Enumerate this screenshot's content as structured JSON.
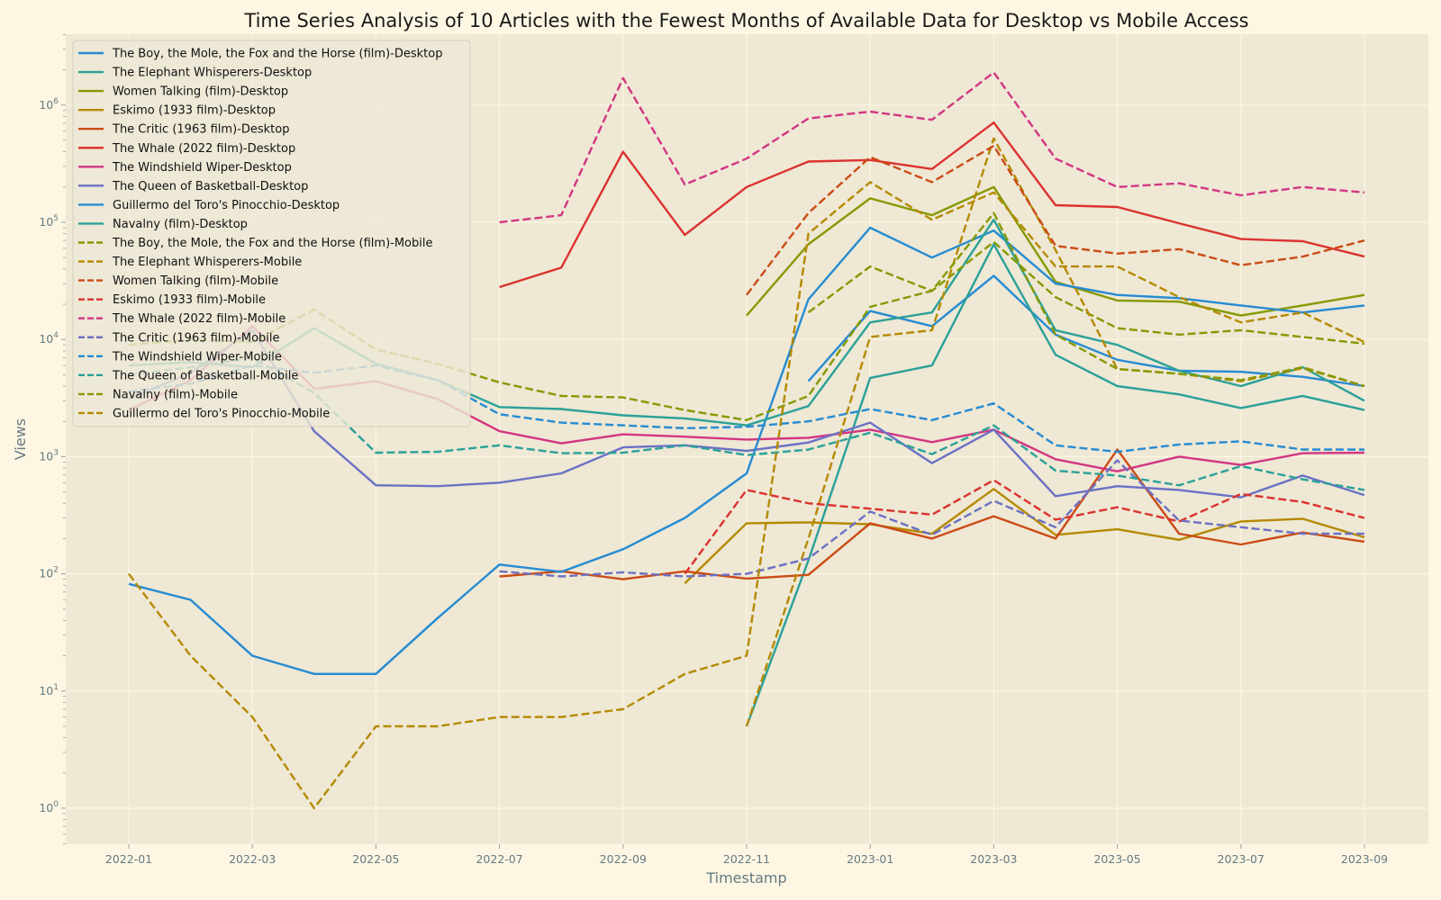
{
  "chart_data": {
    "type": "line",
    "title": "Time Series Analysis of 10 Articles with the Fewest Months of Available Data for Desktop vs Mobile Access",
    "xlabel": "Timestamp",
    "ylabel": "Views",
    "yscale": "log",
    "ylim": [
      0.5,
      4000000
    ],
    "xlim": [
      "2021-12-01",
      "2023-09-01"
    ],
    "grid": true,
    "legend_position": "top-left",
    "x_ticks": [
      "2022-01",
      "2022-03",
      "2022-05",
      "2022-07",
      "2022-09",
      "2022-11",
      "2023-01",
      "2023-03",
      "2023-05",
      "2023-07",
      "2023-09"
    ],
    "y_ticks": [
      1,
      10,
      100,
      1000,
      10000,
      100000,
      1000000
    ],
    "x": [
      "2022-01",
      "2022-02",
      "2022-03",
      "2022-04",
      "2022-05",
      "2022-06",
      "2022-07",
      "2022-08",
      "2022-09",
      "2022-10",
      "2022-11",
      "2022-12",
      "2023-01",
      "2023-02",
      "2023-03",
      "2023-04",
      "2023-05",
      "2023-06",
      "2023-07",
      "2023-08",
      "2023-09"
    ],
    "series": [
      {
        "name": "The Boy, the Mole, the Fox and the Horse (film)-Desktop",
        "color": "#268bd2",
        "dash": "solid",
        "values": [
          null,
          null,
          null,
          null,
          null,
          null,
          null,
          null,
          null,
          null,
          null,
          4400,
          17500,
          13000,
          35000,
          11000,
          6700,
          5400,
          5300,
          4800,
          4000
        ]
      },
      {
        "name": "The Elephant Whisperers-Desktop",
        "color": "#2aa198",
        "dash": "solid",
        "values": [
          null,
          null,
          null,
          null,
          null,
          null,
          null,
          null,
          null,
          null,
          5,
          130,
          4700,
          6000,
          65000,
          7400,
          4000,
          3400,
          2600,
          3300,
          2500
        ]
      },
      {
        "name": "Women Talking (film)-Desktop",
        "color": "#859900",
        "dash": "solid",
        "values": [
          null,
          null,
          null,
          null,
          null,
          null,
          null,
          null,
          null,
          null,
          16000,
          65000,
          160000,
          115000,
          200000,
          31000,
          21500,
          21000,
          16000,
          19500,
          24000
        ]
      },
      {
        "name": "Eskimo (1933 film)-Desktop",
        "color": "#b58900",
        "dash": "solid",
        "values": [
          null,
          null,
          null,
          null,
          null,
          null,
          null,
          null,
          null,
          83,
          270,
          275,
          265,
          220,
          530,
          215,
          240,
          195,
          280,
          295,
          205
        ]
      },
      {
        "name": "The Critic (1963 film)-Desktop",
        "color": "#cb4b16",
        "dash": "solid",
        "values": [
          null,
          null,
          null,
          null,
          null,
          null,
          95,
          105,
          90,
          105,
          91,
          98,
          270,
          200,
          310,
          200,
          1150,
          220,
          178,
          225,
          188
        ]
      },
      {
        "name": "The Whale (2022 film)-Desktop",
        "color": "#dc322f",
        "dash": "solid",
        "values": [
          null,
          null,
          null,
          null,
          null,
          null,
          28000,
          41000,
          400000,
          78000,
          200000,
          330000,
          340000,
          285000,
          710000,
          140000,
          135000,
          98000,
          72000,
          69000,
          51000
        ]
      },
      {
        "name": "The Windshield Wiper-Desktop",
        "color": "#d33682",
        "dash": "solid",
        "values": [
          2500,
          4500,
          13000,
          3800,
          4400,
          3100,
          1650,
          1300,
          1550,
          1480,
          1400,
          1450,
          1700,
          1330,
          1700,
          950,
          750,
          1000,
          850,
          1070,
          1080
        ]
      },
      {
        "name": "The Queen of Basketball-Desktop",
        "color": "#6c71c4",
        "dash": "solid",
        "values": [
          3100,
          5200,
          12000,
          1650,
          570,
          560,
          600,
          720,
          1200,
          1250,
          1120,
          1320,
          1950,
          880,
          1700,
          460,
          560,
          520,
          450,
          690,
          470
        ]
      },
      {
        "name": "Guillermo del Toro's Pinocchio-Desktop",
        "color": "#268bd2",
        "dash": "solid",
        "values": [
          82,
          60,
          20,
          14,
          14,
          42,
          120,
          104,
          162,
          300,
          720,
          22000,
          90000,
          50000,
          85000,
          30000,
          24000,
          22500,
          19500,
          17000,
          19500
        ]
      },
      {
        "name": "Navalny (film)-Desktop",
        "color": "#2aa198",
        "dash": "solid",
        "values": [
          6000,
          6400,
          5800,
          12500,
          6200,
          4500,
          2650,
          2550,
          2250,
          2120,
          1850,
          2700,
          14000,
          17000,
          105000,
          12000,
          9000,
          5400,
          4000,
          5800,
          3000
        ]
      },
      {
        "name": "The Boy, the Mole, the Fox and the Horse (film)-Mobile",
        "color": "#859900",
        "dash": "dashed",
        "values": [
          null,
          null,
          null,
          null,
          null,
          null,
          null,
          null,
          null,
          null,
          null,
          17000,
          42000,
          26000,
          68000,
          23000,
          12500,
          11000,
          12000,
          10500,
          9200
        ]
      },
      {
        "name": "The Elephant Whisperers-Mobile",
        "color": "#b58900",
        "dash": "dashed",
        "values": [
          null,
          null,
          null,
          null,
          null,
          null,
          null,
          null,
          null,
          null,
          5,
          200,
          10500,
          12000,
          520000,
          58000,
          5600,
          5100,
          4400,
          5700,
          4000
        ]
      },
      {
        "name": "Women Talking (film)-Mobile",
        "color": "#cb4b16",
        "dash": "dashed",
        "values": [
          null,
          null,
          null,
          null,
          null,
          null,
          null,
          null,
          null,
          null,
          24000,
          120000,
          360000,
          220000,
          450000,
          63000,
          54000,
          59000,
          43000,
          51000,
          70000
        ]
      },
      {
        "name": "Eskimo (1933 film)-Mobile",
        "color": "#dc322f",
        "dash": "dashed",
        "values": [
          null,
          null,
          null,
          null,
          null,
          null,
          null,
          null,
          null,
          100,
          520,
          400,
          360,
          320,
          630,
          290,
          370,
          280,
          480,
          410,
          300
        ]
      },
      {
        "name": "The Whale (2022 film)-Mobile",
        "color": "#d33682",
        "dash": "dashed",
        "values": [
          null,
          null,
          null,
          null,
          null,
          null,
          100000,
          115000,
          1700000,
          210000,
          350000,
          770000,
          880000,
          750000,
          1900000,
          350000,
          200000,
          215000,
          170000,
          200000,
          180000
        ]
      },
      {
        "name": "The Critic (1963 film)-Mobile",
        "color": "#6c71c4",
        "dash": "dashed",
        "values": [
          null,
          null,
          null,
          null,
          null,
          null,
          105,
          95,
          103,
          95,
          100,
          135,
          340,
          215,
          420,
          250,
          930,
          285,
          250,
          220,
          220
        ]
      },
      {
        "name": "The Windshield Wiper-Mobile",
        "color": "#268bd2",
        "dash": "dashed",
        "values": [
          3600,
          4200,
          6000,
          5200,
          6000,
          4500,
          2300,
          1950,
          1850,
          1750,
          1800,
          2000,
          2550,
          2050,
          2850,
          1250,
          1100,
          1270,
          1350,
          1150,
          1150
        ]
      },
      {
        "name": "The Queen of Basketball-Mobile",
        "color": "#2aa198",
        "dash": "dashed",
        "values": [
          5000,
          5800,
          7000,
          3500,
          1080,
          1100,
          1250,
          1070,
          1080,
          1250,
          1030,
          1150,
          1600,
          1050,
          1850,
          760,
          690,
          570,
          830,
          640,
          520
        ]
      },
      {
        "name": "Navalny (film)-Mobile",
        "color": "#859900",
        "dash": "dashed",
        "values": [
          9000,
          10000,
          9500,
          18000,
          8200,
          6200,
          4300,
          3300,
          3200,
          2500,
          2050,
          3300,
          19000,
          26000,
          120000,
          11000,
          5600,
          5100,
          4500,
          5800,
          4000
        ]
      },
      {
        "name": "Guillermo del Toro's Pinocchio-Mobile",
        "color": "#b58900",
        "dash": "dashed",
        "values": [
          100,
          20,
          6,
          1,
          5,
          5,
          6,
          6,
          7,
          14,
          20,
          80000,
          220000,
          105000,
          180000,
          42000,
          42000,
          23000,
          14000,
          17000,
          9500
        ]
      }
    ]
  }
}
